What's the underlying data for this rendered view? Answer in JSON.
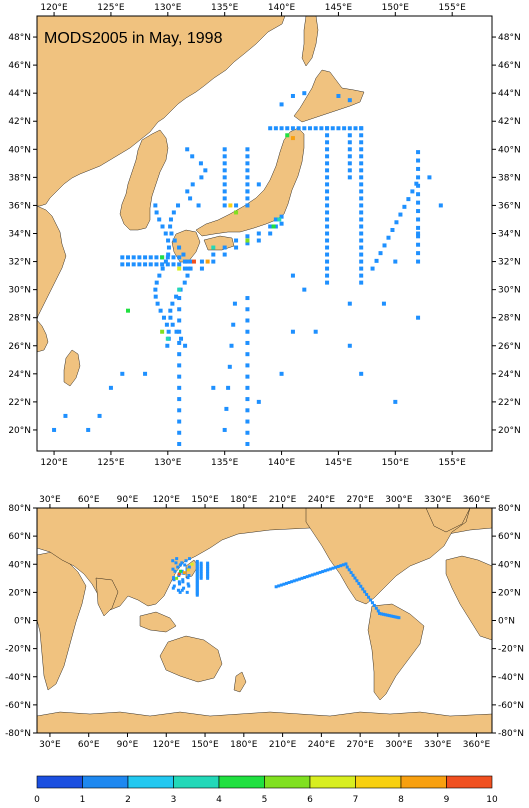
{
  "map_title": "MODS2005 in May, 1998",
  "colors": {
    "land": "#F0C27F",
    "sea": "#FFFFFF",
    "frame": "#000000",
    "obs_default": "#1E90FF"
  },
  "regional_map": {
    "lon_range": [
      118.5,
      158.5
    ],
    "lat_range": [
      18.5,
      49.5
    ],
    "lon_ticks": [
      "120°E",
      "125°E",
      "130°E",
      "135°E",
      "140°E",
      "145°E",
      "150°E",
      "155°E"
    ],
    "lat_ticks": [
      "20°N",
      "22°N",
      "24°N",
      "26°N",
      "28°N",
      "30°N",
      "32°N",
      "34°N",
      "36°N",
      "38°N",
      "40°N",
      "42°N",
      "44°N",
      "46°N",
      "48°N"
    ]
  },
  "global_map": {
    "lon_range": [
      20,
      372
    ],
    "lat_range": [
      -80,
      80
    ],
    "lon_ticks": [
      "30°E",
      "60°E",
      "90°E",
      "120°E",
      "150°E",
      "180°E",
      "210°E",
      "240°E",
      "270°E",
      "300°E",
      "330°E",
      "360°E"
    ],
    "lat_ticks": [
      "80°N",
      "60°N",
      "40°N",
      "20°N",
      "0°N",
      "-20°N",
      "-40°N",
      "-60°N",
      "-80°N"
    ]
  },
  "colorbar": {
    "labels": [
      "0",
      "1",
      "2",
      "3",
      "4",
      "5",
      "6",
      "7",
      "8",
      "9",
      "10"
    ],
    "colors": [
      "#1B4FE0",
      "#1E88F0",
      "#22C8F0",
      "#22D8B8",
      "#20E040",
      "#80E020",
      "#D8EE20",
      "#F8D010",
      "#F8A010",
      "#F05020"
    ]
  }
}
